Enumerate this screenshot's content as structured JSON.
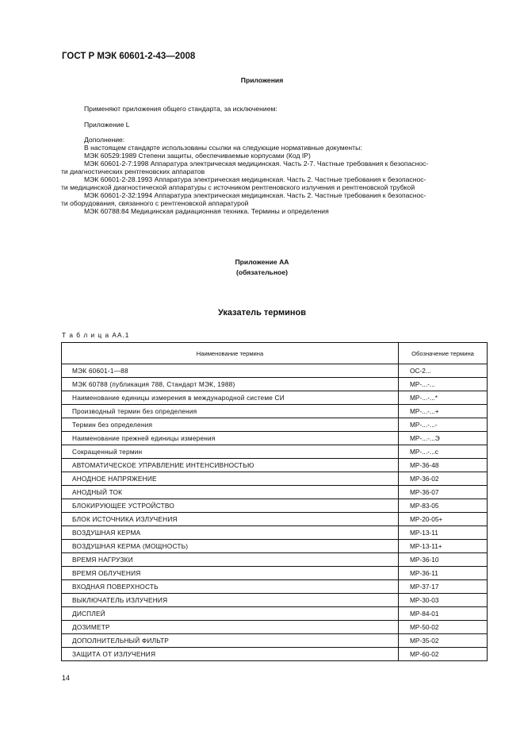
{
  "header": {
    "doc_title": "ГОСТ Р МЭК 60601-2-43—2008",
    "section": "Приложения"
  },
  "body": {
    "lines": [
      "Применяют приложения общего стандарта, за исключением:",
      "Приложение L",
      "Дополнение:",
      "В настоящем стандарте использованы ссылки на следующие нормативные документы:",
      "МЭК  60529:1989  Степени защиты, обеспечиваемые корпусами (Код IP)",
      "МЭК  60601-2-7:1998  Аппаратура электрическая медицинская. Часть 2-7. Частные требования к безопаснос-",
      "ти  диагностических рентгеновских аппаратов",
      "МЭК  60601-2-28.1993  Аппаратура электрическая медицинская. Часть 2. Частные требования к безопаснос-",
      "ти медицинской диагностической аппаратуры с источником рентгеновского излучения и рентгеновской трубкой",
      "МЭК  60601-2-32:1994  Аппаратура электрическая медицинская. Часть 2. Частные требования к безопаснос-",
      "ти оборудования, связанного с рентгеновской аппаратурой",
      "МЭК  60788:84  Медицинская радиационная техника. Термины и определения"
    ]
  },
  "annex": {
    "title": "Приложение АА",
    "subtitle": "(обязательное)",
    "heading": "Указатель терминов",
    "table_caption": "Т а б л и ц а  АА.1"
  },
  "table": {
    "headers": [
      "Наименование термина",
      "Обозначение термина"
    ],
    "rows": [
      [
        "МЭК 60601-1—88",
        "ОС-2..."
      ],
      [
        "МЭК 60788 (публикация 788, Стандарт МЭК, 1988)",
        "МР-...-..."
      ],
      [
        "Наименование единицы измерения в международной системе СИ",
        "МР-...-...*"
      ],
      [
        "Производный термин без определения",
        "МР-...-...+"
      ],
      [
        "Термин без определения",
        "МР-...-...-"
      ],
      [
        "Наименование прежней единицы измерения",
        "МР-...-...Э"
      ],
      [
        "Сокращенный термин",
        "МР-...-...с"
      ],
      [
        "АВТОМАТИЧЕСКОЕ УПРАВЛЕНИЕ ИНТЕНСИВНОСТЬЮ",
        "МР-36-48"
      ],
      [
        "АНОДНОЕ НАПРЯЖЕНИЕ",
        "МР-36-02"
      ],
      [
        "АНОДНЫЙ ТОК",
        "МР-36-07"
      ],
      [
        "БЛОКИРУЮЩЕЕ УСТРОЙСТВО",
        "МР-83-05"
      ],
      [
        "БЛОК ИСТОЧНИКА ИЗЛУЧЕНИЯ",
        "МР-20-05+"
      ],
      [
        "ВОЗДУШНАЯ КЕРМА",
        "МР-13-11"
      ],
      [
        "ВОЗДУШНАЯ КЕРМА (МОЩНОСТЬ)",
        "МР-13-11+"
      ],
      [
        "ВРЕМЯ НАГРУЗКИ",
        "МР-36-10"
      ],
      [
        "ВРЕМЯ ОБЛУЧЕНИЯ",
        "МР-36-11"
      ],
      [
        "ВХОДНАЯ ПОВЕРХНОСТЬ",
        "МР-37-17"
      ],
      [
        "ВЫКЛЮЧАТЕЛЬ ИЗЛУЧЕНИЯ",
        "МР-30-03"
      ],
      [
        "ДИСПЛЕЙ",
        "МР-84-01"
      ],
      [
        "ДОЗИМЕТР",
        "МР-50-02"
      ],
      [
        "ДОПОЛНИТЕЛЬНЫЙ ФИЛЬТР",
        "МР-35-02"
      ],
      [
        "ЗАЩИТА ОТ ИЗЛУЧЕНИЯ",
        "МР-60-02"
      ]
    ]
  },
  "footer": {
    "page_number": "14"
  }
}
